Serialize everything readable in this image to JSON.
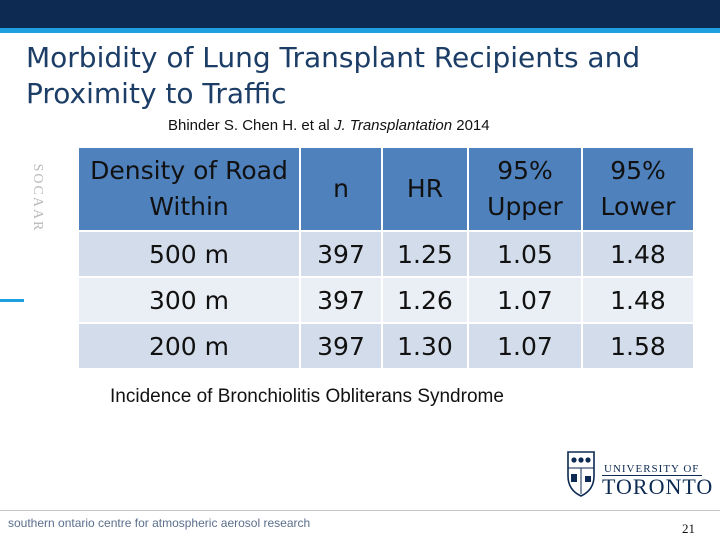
{
  "slide": {
    "title": "Morbidity of Lung Transplant Recipients and Proximity to Traffic",
    "citation": {
      "authors": "Bhinder S. Chen H. et al",
      "journal": "J. Transplantation",
      "year": "2014"
    },
    "side_label": "SOCAAR",
    "caption": "Incidence of Bronchiolitis Obliterans Syndrome",
    "footer_text": "southern ontario centre for atmospheric aerosol research",
    "page_number": "21",
    "logo": {
      "university_of": "UNIVERSITY OF",
      "toronto": "TORONTO"
    }
  },
  "table": {
    "headers": [
      "Density of Road Within",
      "n",
      "HR",
      "95% Upper",
      "95% Lower"
    ],
    "rows": [
      [
        "500 m",
        "397",
        "1.25",
        "1.05",
        "1.48"
      ],
      [
        "300 m",
        "397",
        "1.26",
        "1.07",
        "1.48"
      ],
      [
        "200 m",
        "397",
        "1.30",
        "1.07",
        "1.58"
      ]
    ]
  },
  "colors": {
    "header_bg": "#4f81bd",
    "row_band_dark": "#d3dcea",
    "row_band_light": "#eaeef5",
    "top_bar": "#0c2a52",
    "accent": "#1ea0e0",
    "title_text": "#1b3d66"
  },
  "icons": [
    "university-crest-icon"
  ]
}
